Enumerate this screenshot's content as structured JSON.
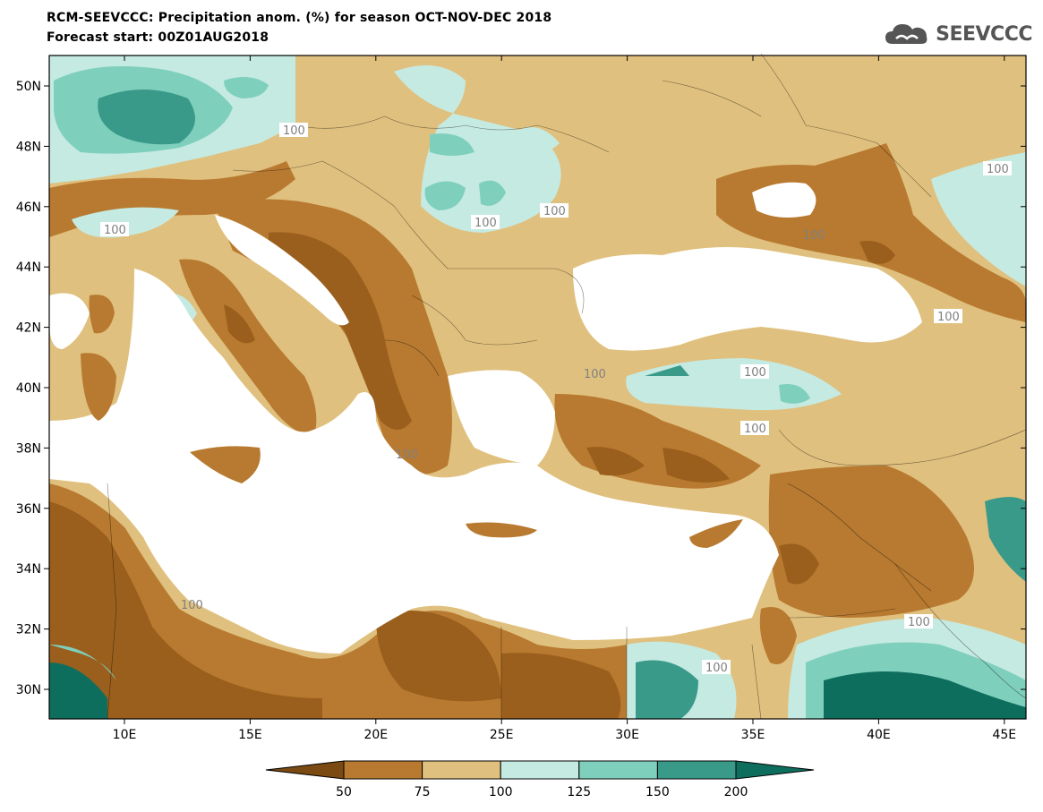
{
  "header": {
    "title_line1": "RCM-SEEVCCC: Precipitation anom. (%) for season OCT-NOV-DEC 2018",
    "title_line2": "Forecast start: 00Z01AUG2018",
    "logo_text": "SEEVCCC",
    "logo_icon": "cloud-icon"
  },
  "map": {
    "lat_labels": [
      "50N",
      "48N",
      "46N",
      "44N",
      "42N",
      "40N",
      "38N",
      "36N",
      "34N",
      "32N",
      "30N"
    ],
    "lon_labels": [
      "10E",
      "15E",
      "20E",
      "25E",
      "30E",
      "35E",
      "40E",
      "45E"
    ],
    "contour_label": "100",
    "contour_labels": [
      "100",
      "100",
      "100",
      "100",
      "100",
      "100",
      "100",
      "100",
      "100",
      "100",
      "100",
      "100",
      "100",
      "100"
    ]
  },
  "colorbar": {
    "ticks": [
      "50",
      "75",
      "100",
      "125",
      "150",
      "200"
    ],
    "colors": [
      "#7a4a12",
      "#b87a30",
      "#e0c07e",
      "#c5eae2",
      "#7fcfbd",
      "#3a9a8a",
      "#0e6e5e"
    ]
  },
  "palette": {
    "very_dry": "#9a5f1c",
    "dry": "#b87a30",
    "slightly_dry": "#e0c07e",
    "slightly_wet": "#c5eae2",
    "wet": "#7fcfbd",
    "very_wet": "#3a9a8a",
    "extremely_wet": "#0e6e5e",
    "sea": "#ffffff"
  }
}
